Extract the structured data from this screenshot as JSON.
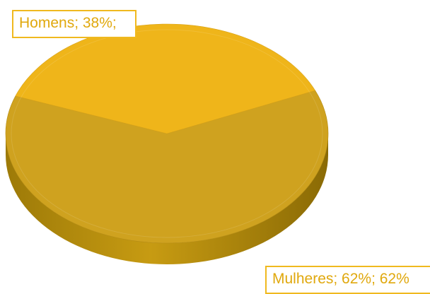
{
  "chart_data": {
    "type": "pie",
    "title": "",
    "categories": [
      "Homens",
      "Mulheres"
    ],
    "values": [
      38,
      62
    ],
    "data_labels": [
      "Homens; 38%;",
      "Mulheres; 62%; 62%"
    ],
    "colors": [
      "#efb51a",
      "#cfa21f"
    ],
    "style": "3d"
  }
}
